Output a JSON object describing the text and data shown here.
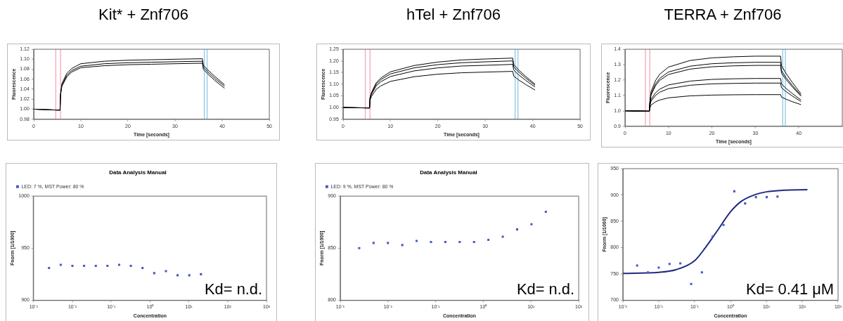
{
  "chart_data": [
    {
      "type": "line",
      "title": "Kit* + Znf706",
      "xlabel": "Time [seconds]",
      "ylabel": "Fluorescence",
      "marker": "none",
      "x": [
        0,
        5.6,
        5.7,
        6,
        7,
        8,
        10,
        15,
        20,
        25,
        30,
        35.8,
        36,
        37,
        38.5,
        40.5
      ],
      "series": [
        {
          "color": "#000000",
          "values": [
            1.0,
            0.998,
            1.03,
            1.051,
            1.071,
            1.081,
            1.091,
            1.096,
            1.098,
            1.099,
            1.1,
            1.101,
            1.088,
            1.078,
            1.065,
            1.049
          ]
        },
        {
          "color": "#000000",
          "values": [
            1.0,
            0.998,
            1.029,
            1.048,
            1.067,
            1.077,
            1.086,
            1.091,
            1.093,
            1.094,
            1.095,
            1.096,
            1.084,
            1.074,
            1.061,
            1.046
          ]
        },
        {
          "color": "#000000",
          "values": [
            1.0,
            0.998,
            1.028,
            1.046,
            1.064,
            1.074,
            1.083,
            1.087,
            1.089,
            1.09,
            1.091,
            1.092,
            1.08,
            1.07,
            1.057,
            1.042
          ]
        }
      ],
      "xlim": [
        0,
        50
      ],
      "xticks": [
        0,
        10,
        20,
        30,
        40,
        50
      ],
      "ylim": [
        0.98,
        1.12
      ],
      "yticks": [
        0.98,
        {
          "value": 1,
          "label": "1.00"
        },
        1.02,
        1.04,
        1.06,
        1.08,
        {
          "value": 1.1,
          "label": "1.10"
        },
        1.12
      ],
      "ref_lines": [
        {
          "axis": "x",
          "value": 4.7,
          "color": "#f4a6b8"
        },
        {
          "axis": "x",
          "value": 5.7,
          "color": "#f4a6b8"
        },
        {
          "axis": "x",
          "value": 36.2,
          "color": "#8ec8e4"
        },
        {
          "axis": "x",
          "value": 36.8,
          "color": "#8ec8e4"
        }
      ]
    },
    {
      "type": "line",
      "title": "hTel + Znf706",
      "xlabel": "Time [seconds]",
      "ylabel": "Fluorescence",
      "marker": "none",
      "x": [
        0,
        5.6,
        5.7,
        6,
        7,
        8,
        10,
        15,
        20,
        25,
        30,
        35.8,
        36,
        37,
        38.5,
        40.5
      ],
      "series": [
        {
          "color": "#000000",
          "values": [
            1.0,
            0.998,
            1.042,
            1.064,
            1.106,
            1.127,
            1.153,
            1.18,
            1.195,
            1.204,
            1.208,
            1.212,
            1.184,
            1.162,
            1.134,
            1.1
          ]
        },
        {
          "color": "#000000",
          "values": [
            1.0,
            0.998,
            1.04,
            1.06,
            1.1,
            1.12,
            1.144,
            1.17,
            1.184,
            1.192,
            1.196,
            1.2,
            1.174,
            1.153,
            1.127,
            1.095
          ]
        },
        {
          "color": "#000000",
          "values": [
            1.0,
            0.998,
            1.037,
            1.056,
            1.093,
            1.111,
            1.133,
            1.157,
            1.17,
            1.178,
            1.181,
            1.185,
            1.161,
            1.141,
            1.117,
            1.088
          ]
        },
        {
          "color": "#000000",
          "values": [
            1.0,
            0.998,
            1.031,
            1.047,
            1.078,
            1.093,
            1.112,
            1.132,
            1.143,
            1.149,
            1.152,
            1.155,
            1.135,
            1.119,
            1.099,
            1.075
          ]
        }
      ],
      "xlim": [
        0,
        50
      ],
      "xticks": [
        0,
        10,
        20,
        30,
        40,
        50
      ],
      "ylim": [
        0.95,
        1.25
      ],
      "yticks": [
        0.95,
        {
          "value": 1,
          "label": "1.00"
        },
        1.05,
        {
          "value": 1.1,
          "label": "1.10"
        },
        1.15,
        {
          "value": 1.2,
          "label": "1.20"
        },
        1.25
      ],
      "ref_lines": [
        {
          "axis": "x",
          "value": 4.7,
          "color": "#f4a6b8"
        },
        {
          "axis": "x",
          "value": 5.7,
          "color": "#f4a6b8"
        },
        {
          "axis": "x",
          "value": 36.3,
          "color": "#8ec8e4"
        },
        {
          "axis": "x",
          "value": 36.9,
          "color": "#8ec8e4"
        }
      ]
    },
    {
      "type": "line",
      "title": "TERRA + Znf706",
      "xlabel": "Time [seconds]",
      "ylabel": "Fluorescence",
      "marker": "none",
      "x": [
        0,
        5.6,
        5.7,
        6,
        7,
        8,
        10,
        15,
        20,
        25,
        30,
        35.8,
        36,
        37,
        38.5,
        40.5
      ],
      "series": [
        {
          "color": "#000000",
          "values": [
            1.0,
            0.997,
            1.053,
            1.124,
            1.195,
            1.238,
            1.284,
            1.327,
            1.344,
            1.351,
            1.355,
            1.355,
            1.294,
            1.245,
            1.184,
            1.11
          ]
        },
        {
          "color": "#000000",
          "values": [
            1.0,
            0.997,
            1.047,
            1.11,
            1.173,
            1.211,
            1.252,
            1.29,
            1.306,
            1.312,
            1.315,
            1.315,
            1.261,
            1.218,
            1.165,
            1.1
          ]
        },
        {
          "color": "#000000",
          "values": [
            1.0,
            0.997,
            1.044,
            1.103,
            1.162,
            1.198,
            1.236,
            1.271,
            1.286,
            1.292,
            1.295,
            1.295,
            1.245,
            1.205,
            1.155,
            1.095
          ]
        },
        {
          "color": "#000000",
          "values": [
            1.0,
            0.997,
            1.032,
            1.074,
            1.116,
            1.141,
            1.168,
            1.193,
            1.204,
            1.208,
            1.21,
            1.21,
            1.175,
            1.147,
            1.112,
            1.07
          ]
        },
        {
          "color": "#000000",
          "values": [
            1.0,
            0.997,
            1.027,
            1.063,
            1.099,
            1.121,
            1.144,
            1.166,
            1.175,
            1.178,
            1.18,
            1.18,
            1.15,
            1.126,
            1.096,
            1.06
          ]
        },
        {
          "color": "#000000",
          "values": [
            1.0,
            0.997,
            1.016,
            1.037,
            1.058,
            1.07,
            1.084,
            1.097,
            1.102,
            1.104,
            1.105,
            1.105,
            1.089,
            1.076,
            1.059,
            1.04
          ]
        }
      ],
      "xlim": [
        0,
        50
      ],
      "xticks": [
        0,
        10,
        20,
        30,
        40
      ],
      "ylim": [
        0.9,
        1.4
      ],
      "yticks": [
        0.9,
        {
          "value": 1,
          "label": "1.0"
        },
        1.1,
        1.2,
        1.3,
        1.4
      ],
      "ref_lines": [
        {
          "axis": "x",
          "value": 4.7,
          "color": "#f4a6b8"
        },
        {
          "axis": "x",
          "value": 5.7,
          "color": "#f4a6b8"
        },
        {
          "axis": "x",
          "value": 36.3,
          "color": "#8ec8e4"
        },
        {
          "axis": "x",
          "value": 36.9,
          "color": "#8ec8e4"
        }
      ]
    },
    {
      "type": "scatter",
      "title": "Data Analysis Manual",
      "xlabel": "Concentration",
      "ylabel": "Fnorm [1/1000]",
      "marker": "square",
      "log": "x",
      "legend": "top left",
      "x": [
        0.0025,
        0.005,
        0.01,
        0.02,
        0.04,
        0.08,
        0.16,
        0.32,
        0.64,
        1.28,
        2.56,
        5.12,
        10.24,
        20.48
      ],
      "series": [
        {
          "name": "LED: 7 %, MST Power: 80 %",
          "color": "#4a5cc0",
          "values": [
            931,
            934,
            933,
            933,
            933,
            933,
            934,
            933,
            931,
            926,
            928,
            924,
            924,
            925
          ]
        }
      ],
      "xlim": [
        0.001,
        1000
      ],
      "xticks": [
        {
          "value": 0.001,
          "label": "10⁻³"
        },
        {
          "value": 0.01,
          "label": "10⁻²"
        },
        {
          "value": 0.1,
          "label": "10⁻¹"
        },
        {
          "value": 1,
          "label": "10⁰"
        },
        {
          "value": 10,
          "label": "10¹"
        },
        {
          "value": 100,
          "label": "10²"
        },
        {
          "value": 1000,
          "label": "10³"
        }
      ],
      "ylim": [
        900,
        1000
      ],
      "yticks": [
        900,
        950,
        1000
      ],
      "annotations": [
        "Kd= n.d."
      ]
    },
    {
      "type": "scatter",
      "title": "Data Analysis Manual",
      "xlabel": "Concentration",
      "ylabel": "Fnorm [1/1000]",
      "marker": "square",
      "log": "x",
      "legend": "top left",
      "x": [
        0.0025,
        0.005,
        0.01,
        0.02,
        0.04,
        0.08,
        0.16,
        0.32,
        0.64,
        1.28,
        2.56,
        5.12,
        10.24,
        20.48
      ],
      "series": [
        {
          "name": "LED: 9 %, MST Power: 80 %",
          "color": "#4a5cc0",
          "values": [
            850,
            855,
            855,
            853,
            857,
            856,
            856,
            856,
            856,
            858,
            861,
            868,
            873,
            885
          ]
        }
      ],
      "xlim": [
        0.001,
        100
      ],
      "xticks": [
        {
          "value": 0.001,
          "label": "10⁻³"
        },
        {
          "value": 0.01,
          "label": "10⁻²"
        },
        {
          "value": 0.1,
          "label": "10⁻¹"
        },
        {
          "value": 1,
          "label": "10⁰"
        },
        {
          "value": 10,
          "label": "10¹"
        },
        {
          "value": 100,
          "label": "10²"
        }
      ],
      "ylim": [
        800,
        900
      ],
      "yticks": [
        800,
        850,
        900
      ],
      "annotations": [
        "Kd= n.d."
      ]
    },
    {
      "type": "scatter",
      "xlabel": "Concentration",
      "ylabel": "Fnorm [1/1000]",
      "marker": "square",
      "log": "x",
      "x": [
        0.0025,
        0.005,
        0.01,
        0.02,
        0.04,
        0.08,
        0.16,
        0.32,
        0.64,
        1.28,
        2.56,
        5.12,
        10.24,
        20.48
      ],
      "series": [
        {
          "color": "#4a5cc0",
          "values": [
            766,
            753,
            762,
            769,
            770,
            731,
            753,
            821,
            843,
            907,
            884,
            896,
            896,
            897
          ]
        },
        {
          "type": "line",
          "marker": "none",
          "color": "#1f2a80",
          "x": [
            0.001,
            0.01,
            0.03,
            0.1,
            0.2,
            0.41,
            1,
            2,
            5,
            10,
            30,
            140
          ],
          "values": [
            751,
            753,
            758,
            775,
            800,
            830,
            868,
            888,
            901,
            906,
            909,
            910
          ]
        }
      ],
      "xlim": [
        0.001,
        1000
      ],
      "xticks": [
        {
          "value": 0.001,
          "label": "10⁻³"
        },
        {
          "value": 0.01,
          "label": "10⁻²"
        },
        {
          "value": 0.1,
          "label": "10⁻¹"
        },
        {
          "value": 1,
          "label": "10⁰"
        },
        {
          "value": 10,
          "label": "10¹"
        },
        {
          "value": 100,
          "label": "10²"
        },
        {
          "value": 1000,
          "label": "10³"
        }
      ],
      "ylim": [
        700,
        950
      ],
      "yticks": [
        700,
        750,
        800,
        850,
        900,
        950
      ],
      "annotations": [
        "Kd= 0.41 μM"
      ]
    }
  ]
}
